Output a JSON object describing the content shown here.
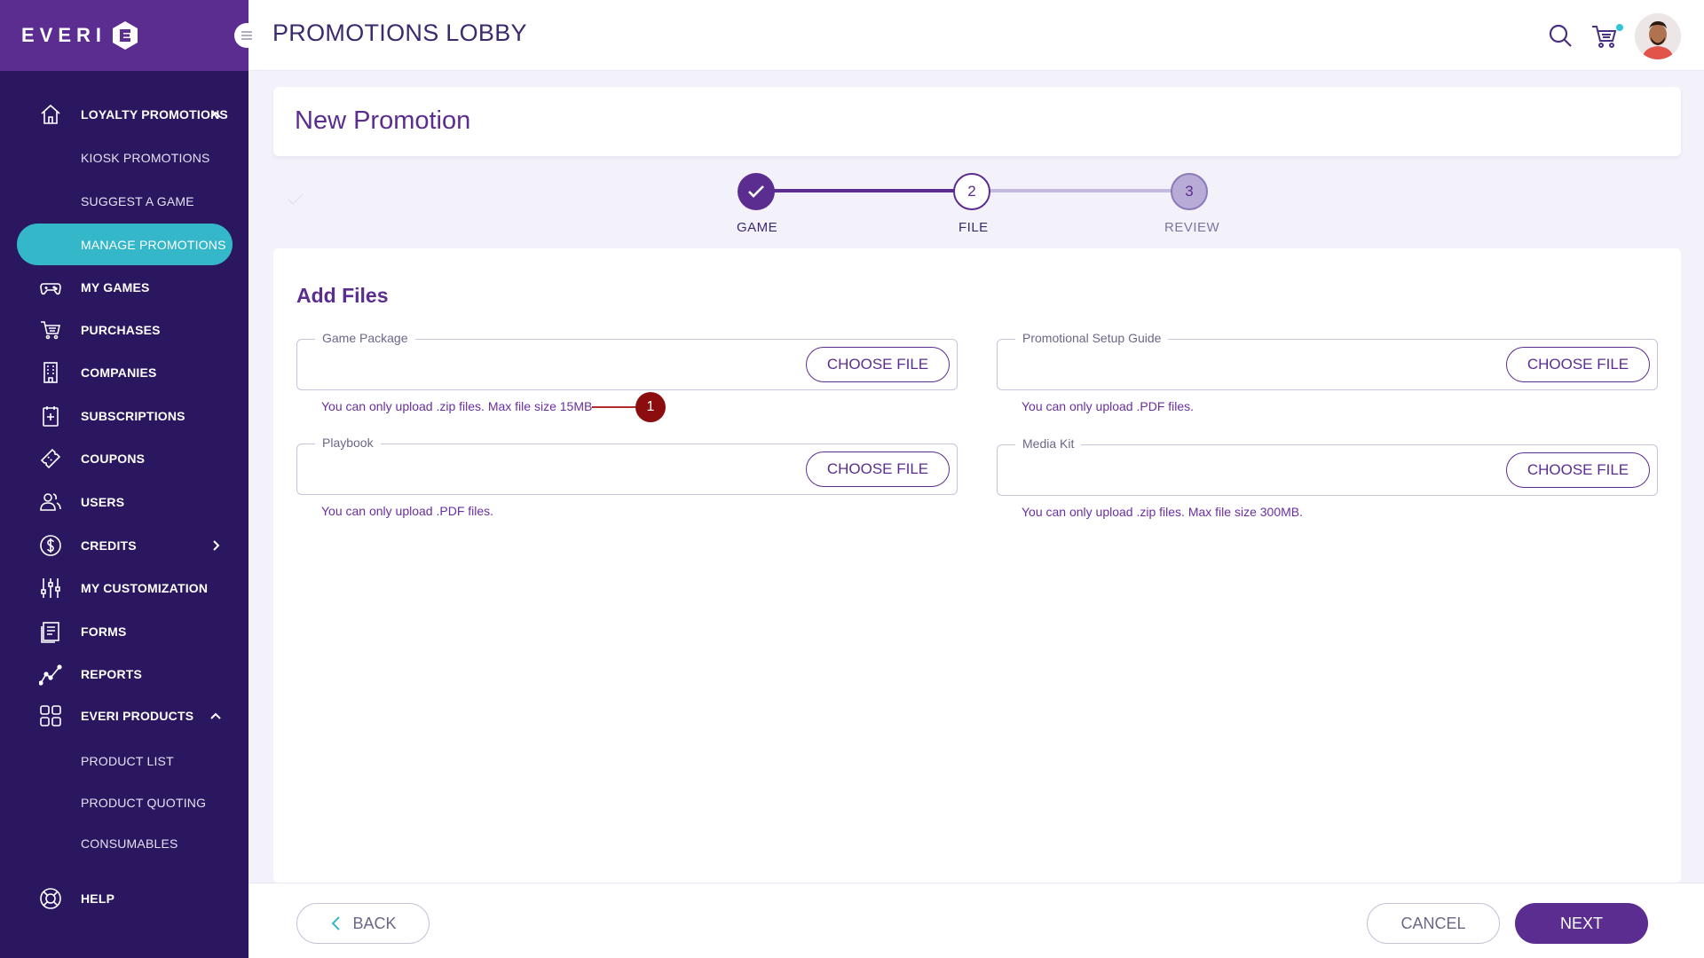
{
  "brand": {
    "logo_text": "EVERI"
  },
  "header": {
    "title": "PROMOTIONS LOBBY"
  },
  "sidebar": {
    "items": [
      {
        "label": "LOYALTY PROMOTIONS",
        "icon": "home-icon"
      },
      {
        "label": "KIOSK PROMOTIONS"
      },
      {
        "label": "SUGGEST A GAME"
      },
      {
        "label": "MANAGE PROMOTIONS",
        "active": true
      },
      {
        "label": "MY GAMES",
        "icon": "gamepad-icon"
      },
      {
        "label": "PURCHASES",
        "icon": "cart-icon"
      },
      {
        "label": "COMPANIES",
        "icon": "building-icon"
      },
      {
        "label": "SUBSCRIPTIONS",
        "icon": "subscription-icon"
      },
      {
        "label": "COUPONS",
        "icon": "ticket-icon"
      },
      {
        "label": "USERS",
        "icon": "users-icon"
      },
      {
        "label": "CREDITS",
        "icon": "dollar-icon"
      },
      {
        "label": "MY CUSTOMIZATION",
        "icon": "sliders-icon"
      },
      {
        "label": "FORMS",
        "icon": "form-icon"
      },
      {
        "label": "REPORTS",
        "icon": "chart-line-icon"
      },
      {
        "label": "EVERI PRODUCTS",
        "icon": "grid-icon"
      },
      {
        "label": "PRODUCT LIST"
      },
      {
        "label": "PRODUCT QUOTING"
      },
      {
        "label": "CONSUMABLES"
      },
      {
        "label": "HELP",
        "icon": "lifebuoy-icon"
      }
    ]
  },
  "promotion": {
    "title": "New Promotion"
  },
  "stepper": {
    "steps": [
      {
        "label": "GAME",
        "number": "",
        "state": "done"
      },
      {
        "label": "FILE",
        "number": "2",
        "state": "current"
      },
      {
        "label": "REVIEW",
        "number": "3",
        "state": "upcoming"
      }
    ]
  },
  "files": {
    "section_title": "Add Files",
    "choose_label": "CHOOSE FILE",
    "fields": [
      {
        "label": "Game Package",
        "hint": "You can only upload .zip files. Max file size 15MB"
      },
      {
        "label": "Promotional Setup Guide",
        "hint": "You can only upload .PDF files."
      },
      {
        "label": "Playbook",
        "hint": "You can only upload .PDF files."
      },
      {
        "label": "Media Kit",
        "hint": "You can only upload .zip files. Max file size 300MB."
      }
    ],
    "annotation": "1"
  },
  "footer": {
    "back_label": "BACK",
    "cancel_label": "CANCEL",
    "next_label": "NEXT"
  },
  "colors": {
    "sidebar": "#2a175f",
    "brand": "#5b2d90",
    "accent": "#33b7c9",
    "annotation": "#8b0d0d"
  }
}
